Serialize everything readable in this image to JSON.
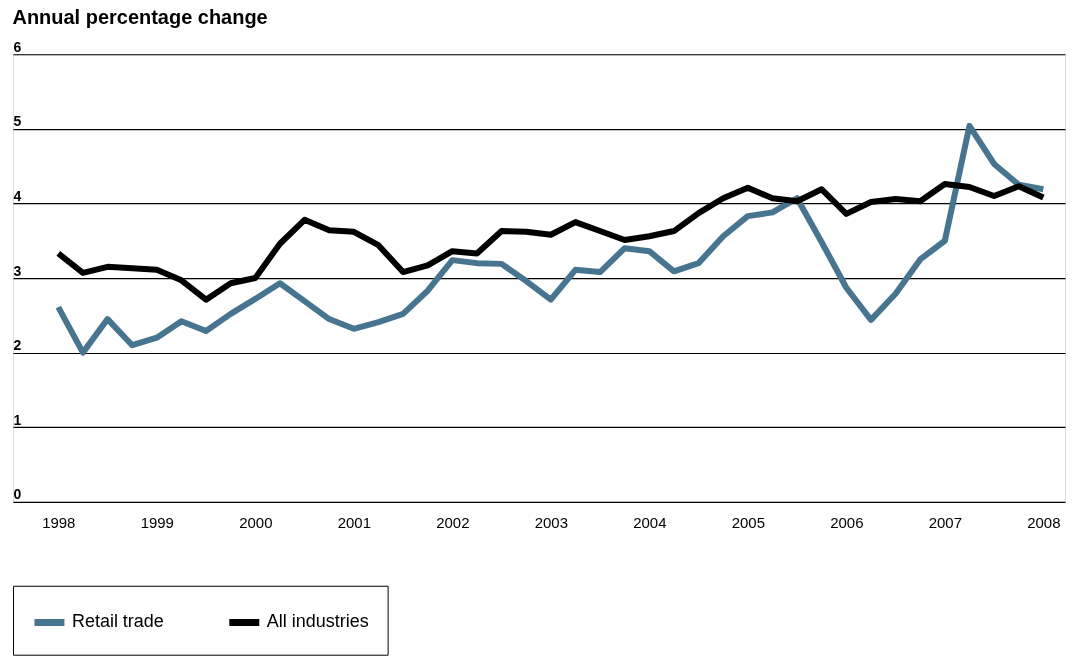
{
  "chart_data": {
    "type": "line",
    "title": "Annual percentage change",
    "x": [
      1998,
      1998.25,
      1998.5,
      1998.75,
      1999,
      1999.25,
      1999.5,
      1999.75,
      2000,
      2000.25,
      2000.5,
      2000.75,
      2001,
      2001.25,
      2001.5,
      2001.75,
      2002,
      2002.25,
      2002.5,
      2002.75,
      2003,
      2003.25,
      2003.5,
      2003.75,
      2004,
      2004.25,
      2004.5,
      2004.75,
      2005,
      2005.25,
      2005.5,
      2005.75,
      2006,
      2006.25,
      2006.5,
      2006.75,
      2007,
      2007.25,
      2007.5,
      2007.75,
      2008
    ],
    "series": [
      {
        "name": "Retail trade",
        "color": "#47748f",
        "values": [
          2.61,
          2.0,
          2.45,
          2.1,
          2.2,
          2.42,
          2.29,
          2.52,
          2.72,
          2.93,
          2.69,
          2.45,
          2.32,
          2.41,
          2.52,
          2.83,
          3.24,
          3.2,
          3.19,
          2.96,
          2.71,
          3.11,
          3.08,
          3.4,
          3.36,
          3.09,
          3.2,
          3.56,
          3.83,
          3.88,
          4.07,
          3.48,
          2.87,
          2.44,
          2.79,
          3.25,
          3.5,
          5.04,
          4.53,
          4.25,
          4.19
        ]
      },
      {
        "name": "All industries",
        "color": "#000000",
        "values": [
          3.33,
          3.07,
          3.15,
          3.13,
          3.11,
          2.97,
          2.71,
          2.93,
          3.0,
          3.46,
          3.78,
          3.64,
          3.62,
          3.44,
          3.08,
          3.17,
          3.36,
          3.33,
          3.63,
          3.62,
          3.58,
          3.75,
          3.63,
          3.51,
          3.56,
          3.63,
          3.87,
          4.07,
          4.21,
          4.07,
          4.03,
          4.19,
          3.86,
          4.02,
          4.06,
          4.03,
          4.26,
          4.22,
          4.1,
          4.23,
          4.08
        ]
      }
    ],
    "xlim": [
      1997.54,
      2008.22
    ],
    "xticks": [
      1998,
      1999,
      2000,
      2001,
      2002,
      2003,
      2004,
      2005,
      2006,
      2007,
      2008
    ],
    "ylim": [
      0,
      6
    ],
    "yticks": [
      0,
      1,
      2,
      3,
      4,
      5,
      6
    ],
    "grid": "y",
    "legend": "bottom",
    "marker": "none",
    "line_style": "solid"
  }
}
